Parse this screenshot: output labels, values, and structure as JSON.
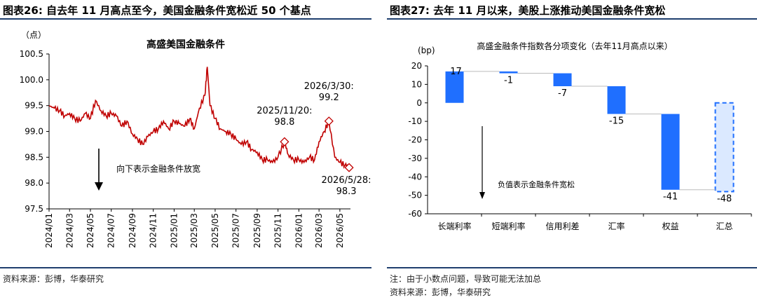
{
  "left_panel": {
    "figure_title": "图表26:  自去年 11 月高点至今，美国金融条件宽松近 50 个基点",
    "source": "资料来源：彭博，华泰研究"
  },
  "right_panel": {
    "figure_title": "图表27:  去年 11 月以来，美股上涨推动美国金融条件宽松",
    "note": "注：由于小数点问题，导致可能无法加总",
    "source": "资料来源：彭博，华泰研究"
  },
  "chart_data": [
    {
      "type": "line",
      "title": "高盛美国金融条件",
      "ylabel": "（点）",
      "ylim": [
        97.5,
        100.5
      ],
      "yticks": [
        "97.5",
        "98.0",
        "98.5",
        "99.0",
        "99.5",
        "100.0",
        "100.5"
      ],
      "xticks": [
        "2024/01",
        "2024/03",
        "2024/05",
        "2024/07",
        "2024/09",
        "2024/11",
        "2025/01",
        "2025/03",
        "2025/05",
        "2025/07",
        "2025/09",
        "2025/11",
        "2026/01",
        "2026/03",
        "2026/05"
      ],
      "line_color": "#c00000",
      "arrow_label": "向下表示金融条件放宽",
      "series": [
        {
          "x": [
            "2024-01-01",
            "2024-01-16",
            "2024-02-01",
            "2024-02-16",
            "2024-03-01",
            "2024-03-16",
            "2024-04-01",
            "2024-04-16",
            "2024-05-01",
            "2024-05-16",
            "2024-06-01",
            "2024-06-16",
            "2024-07-01",
            "2024-07-16",
            "2024-08-01",
            "2024-08-16",
            "2024-09-01",
            "2024-09-16",
            "2024-10-01",
            "2024-10-16",
            "2024-11-01",
            "2024-11-16",
            "2024-12-01",
            "2024-12-16",
            "2025-01-01",
            "2025-01-16",
            "2025-02-01",
            "2025-02-16",
            "2025-03-01",
            "2025-03-16",
            "2025-04-01",
            "2025-04-08",
            "2025-04-16",
            "2025-05-01",
            "2025-05-16",
            "2025-06-01",
            "2025-06-16",
            "2025-07-01",
            "2025-07-16",
            "2025-08-01",
            "2025-08-16",
            "2025-09-01",
            "2025-09-16",
            "2025-10-01",
            "2025-10-16",
            "2025-11-01",
            "2025-11-20",
            "2025-12-01",
            "2025-12-16",
            "2026-01-01",
            "2026-01-16",
            "2026-02-01",
            "2026-02-16",
            "2026-03-01",
            "2026-03-16",
            "2026-03-30",
            "2026-04-16",
            "2026-05-01",
            "2026-05-16",
            "2026-05-28"
          ],
          "y": [
            99.5,
            99.45,
            99.4,
            99.3,
            99.35,
            99.25,
            99.2,
            99.35,
            99.25,
            99.6,
            99.4,
            99.3,
            99.35,
            99.3,
            99.1,
            99.2,
            98.95,
            98.85,
            98.75,
            98.9,
            99.0,
            99.05,
            99.2,
            99.05,
            99.2,
            99.15,
            99.1,
            99.25,
            99.05,
            99.45,
            99.7,
            100.25,
            99.5,
            99.25,
            99.05,
            99.0,
            98.95,
            98.85,
            98.75,
            98.8,
            98.65,
            98.6,
            98.45,
            98.45,
            98.4,
            98.5,
            98.8,
            98.55,
            98.45,
            98.45,
            98.4,
            98.5,
            98.45,
            98.8,
            99.0,
            99.2,
            98.5,
            98.4,
            98.35,
            98.3
          ]
        }
      ],
      "annotations": [
        {
          "x": "2025-11-20",
          "y": 98.8,
          "lines": [
            "2025/11/20:",
            "98.8"
          ]
        },
        {
          "x": "2026-03-30",
          "y": 99.2,
          "lines": [
            "2026/3/30:",
            "99.2"
          ]
        },
        {
          "x": "2026-05-28",
          "y": 98.3,
          "lines": [
            "2026/5/28:",
            "98.3"
          ]
        }
      ]
    },
    {
      "type": "bar",
      "subtype": "waterfall",
      "title": "高盛金融条件指数各分项变化（去年11月高点以来）",
      "ylabel": "(bp)",
      "ylim": [
        -60,
        20
      ],
      "yticks": [
        "20",
        "10",
        "0",
        "-10",
        "-20",
        "-30",
        "-40",
        "-50",
        "-60"
      ],
      "categories": [
        "长端利率",
        "短端利率",
        "信用利差",
        "汇率",
        "权益",
        "汇总"
      ],
      "values": [
        17,
        -1,
        -7,
        -15,
        -41,
        -48
      ],
      "value_labels": [
        "17",
        "-1",
        "-7",
        "-15",
        "-41",
        "-48"
      ],
      "bar_color": "#1f6fff",
      "arrow_label": "负值表示金融条件宽松"
    }
  ]
}
